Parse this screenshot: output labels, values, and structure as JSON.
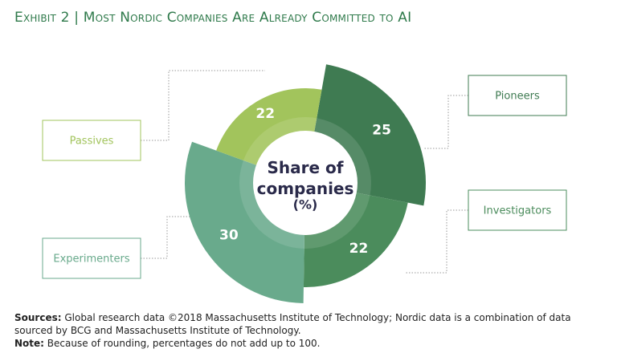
{
  "chart_data": {
    "type": "pie",
    "title": "Exhibit 2 | Most Nordic Companies Are Already Committed to AI",
    "center_label": "Share of companies",
    "center_unit": "(%)",
    "categories": [
      "Pioneers",
      "Investigators",
      "Experimenters",
      "Passives"
    ],
    "values": [
      25,
      22,
      30,
      22
    ],
    "colors": [
      "#3f7b52",
      "#4b8c5c",
      "#69aa8c",
      "#a2c45c"
    ],
    "sources_label": "Sources:",
    "sources": "Global research data ©2018 Massachusetts Institute of Technology; Nordic data is a combination of data sourced by BCG and Massachusetts Institute of Technology.",
    "note_label": "Note:",
    "note": "Because of rounding, percentages do not add up to 100."
  }
}
